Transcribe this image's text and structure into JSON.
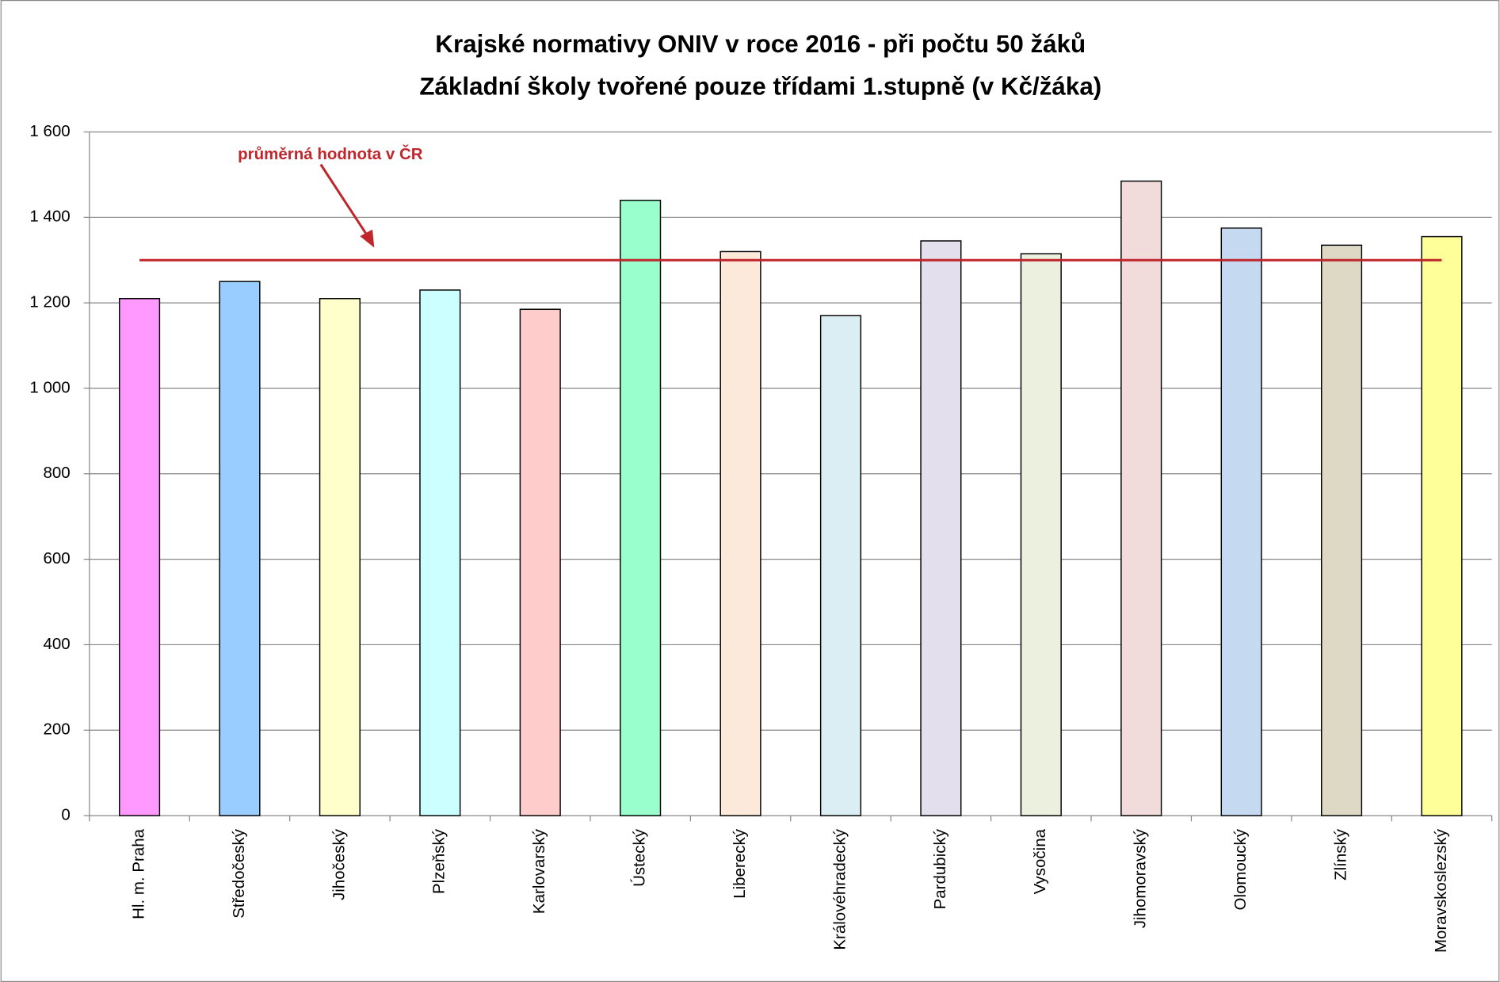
{
  "chart_data": {
    "type": "bar",
    "title": "Krajské normativy ONIV v roce 2016 - při počtu 50 žáků",
    "subtitle": "Základní školy tvořené pouze třídami 1.stupně (v Kč/žáka)",
    "categories": [
      "Hl. m. Praha",
      "Středočeský",
      "Jihočeský",
      "Plzeňský",
      "Karlovarský",
      "Ústecký",
      "Liberecký",
      "Královéhradecký",
      "Pardubický",
      "Vysočina",
      "Jihomoravský",
      "Olomoucký",
      "Zlínský",
      "Moravskoslezský"
    ],
    "values": [
      1210,
      1250,
      1210,
      1230,
      1185,
      1440,
      1320,
      1170,
      1345,
      1315,
      1485,
      1375,
      1335,
      1355
    ],
    "colors": [
      "#ff99ff",
      "#99ccff",
      "#ffffcc",
      "#ccffff",
      "#ffcccc",
      "#99ffcc",
      "#fde9d9",
      "#daeef3",
      "#e4dfec",
      "#ebf1de",
      "#f2dcdb",
      "#c5d9f1",
      "#ddd9c4",
      "#ffff99"
    ],
    "ylim": [
      0,
      1600
    ],
    "yticks": [
      0,
      200,
      400,
      600,
      800,
      {
        "value": 1000,
        "label": "1 000"
      },
      {
        "value": 1200,
        "label": "1 200"
      },
      {
        "value": 1400,
        "label": "1 400"
      },
      {
        "value": 1600,
        "label": "1 600"
      }
    ],
    "grid": true,
    "reference_line": {
      "value": 1300,
      "label": "průměrná hodnota v ČR",
      "color": "#c0272d"
    }
  }
}
